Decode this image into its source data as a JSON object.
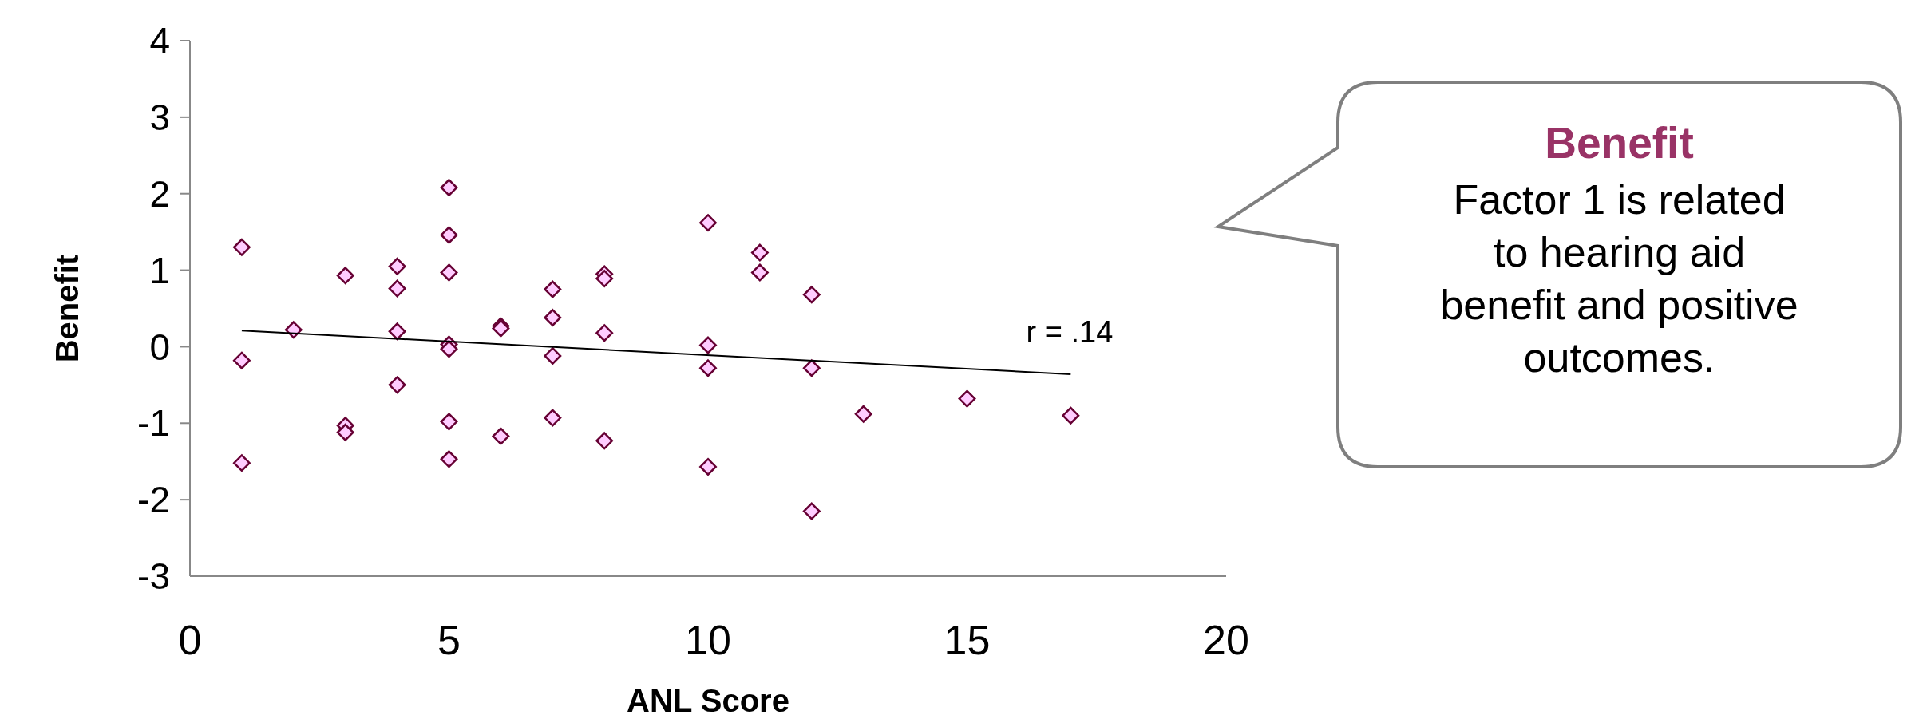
{
  "chart_data": {
    "type": "scatter",
    "xlabel": "ANL Score",
    "ylabel": "Benefit",
    "xlim": [
      0,
      20
    ],
    "xticks": [
      0,
      5,
      10,
      15,
      20
    ],
    "ylim": [
      -3,
      4
    ],
    "yticks": [
      -3,
      -2,
      -1,
      0,
      1,
      2,
      3,
      4
    ],
    "marker": "diamond",
    "series": [
      {
        "color": "#ffccff",
        "x": [
          1,
          1,
          1,
          2,
          3,
          3,
          3,
          4,
          4,
          4,
          4,
          5,
          5,
          5,
          5,
          5,
          5,
          5,
          6,
          6,
          6,
          7,
          7,
          7,
          7,
          8,
          8,
          8,
          8,
          10,
          10,
          10,
          10,
          11,
          11,
          12,
          12,
          12,
          13,
          15,
          17
        ],
        "values": [
          1.3,
          -0.18,
          -1.52,
          0.22,
          0.93,
          -1.03,
          -1.12,
          1.05,
          0.76,
          0.2,
          -0.5,
          2.08,
          1.46,
          0.97,
          0.03,
          -0.03,
          -0.98,
          -1.47,
          0.27,
          0.24,
          -1.17,
          0.75,
          0.38,
          -0.12,
          -0.93,
          0.95,
          0.89,
          0.18,
          -1.23,
          1.62,
          0.02,
          -0.28,
          -1.57,
          1.23,
          0.97,
          0.68,
          -0.28,
          -2.15,
          -0.88,
          -0.68,
          -0.9
        ]
      },
      {
        "type": "line",
        "marker": "none",
        "color": "#000000",
        "x": [
          1,
          17
        ],
        "values": [
          0.21,
          -0.36
        ]
      }
    ],
    "annotations": [
      "r = .14",
      "Benefit",
      "Factor 1 is related to hearing aid benefit and positive outcomes."
    ]
  }
}
